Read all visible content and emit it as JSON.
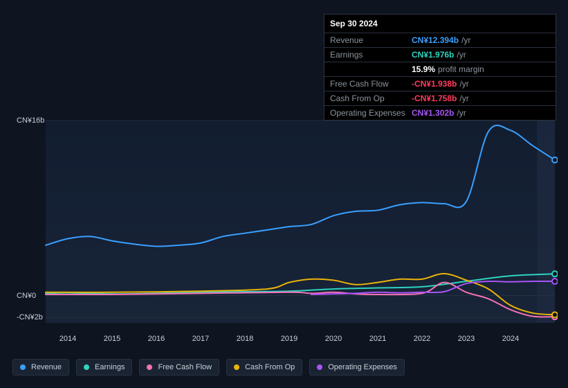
{
  "title_date": "Sep 30 2024",
  "tooltip": {
    "rows": [
      {
        "label": "Revenue",
        "value": "CN¥12.394b",
        "suffix": "/yr",
        "color": "#3aa0ff"
      },
      {
        "label": "Earnings",
        "value": "CN¥1.976b",
        "suffix": "/yr",
        "color": "#2dd4bf"
      },
      {
        "label": "",
        "value": "15.9%",
        "suffix": "profit margin",
        "color": "#ffffff"
      },
      {
        "label": "Free Cash Flow",
        "value": "-CN¥1.938b",
        "suffix": "/yr",
        "color": "#ff3b5c"
      },
      {
        "label": "Cash From Op",
        "value": "-CN¥1.758b",
        "suffix": "/yr",
        "color": "#ff3b5c"
      },
      {
        "label": "Operating Expenses",
        "value": "CN¥1.302b",
        "suffix": "/yr",
        "color": "#a855f7"
      }
    ]
  },
  "chart": {
    "type": "line",
    "background": "#0e1521",
    "plot_gradient_top": "#121d30",
    "plot_gradient_bottom": "#182438",
    "grid_color": "#26303e",
    "xlim": [
      2013.5,
      2025
    ],
    "ylim": [
      -2.5,
      16
    ],
    "y_ticks": [
      {
        "v": 16,
        "label": "CN¥16b"
      },
      {
        "v": 0,
        "label": "CN¥0"
      },
      {
        "v": -2,
        "label": "-CN¥2b"
      }
    ],
    "x_ticks": [
      2014,
      2015,
      2016,
      2017,
      2018,
      2019,
      2020,
      2021,
      2022,
      2023,
      2024
    ],
    "line_width": 2,
    "series": [
      {
        "name": "Revenue",
        "color": "#3aa0ff",
        "x": [
          2013.5,
          2014,
          2014.5,
          2015,
          2015.5,
          2016,
          2016.5,
          2017,
          2017.5,
          2018,
          2018.5,
          2019,
          2019.5,
          2020,
          2020.5,
          2021,
          2021.5,
          2022,
          2022.5,
          2023,
          2023.5,
          2024,
          2024.5,
          2025
        ],
        "y": [
          4.6,
          5.2,
          5.4,
          5.0,
          4.7,
          4.5,
          4.6,
          4.8,
          5.4,
          5.7,
          6.0,
          6.3,
          6.5,
          7.3,
          7.7,
          7.8,
          8.3,
          8.5,
          8.4,
          8.6,
          15.0,
          15.1,
          13.7,
          12.4
        ]
      },
      {
        "name": "Earnings",
        "color": "#2dd4bf",
        "x": [
          2013.5,
          2014,
          2015,
          2016,
          2017,
          2018,
          2019,
          2020,
          2021,
          2022,
          2023,
          2024,
          2025
        ],
        "y": [
          0.2,
          0.25,
          0.15,
          0.2,
          0.3,
          0.35,
          0.4,
          0.6,
          0.7,
          0.8,
          1.3,
          1.8,
          1.98
        ]
      },
      {
        "name": "Free Cash Flow",
        "color": "#f472b6",
        "x": [
          2013.5,
          2015,
          2017,
          2019,
          2019.5,
          2020,
          2020.5,
          2021,
          2022,
          2022.5,
          2023,
          2023.5,
          2024,
          2024.5,
          2025
        ],
        "y": [
          0.1,
          0.1,
          0.2,
          0.3,
          0.2,
          0.3,
          0.15,
          0.1,
          0.2,
          1.2,
          0.3,
          -0.3,
          -1.3,
          -1.9,
          -1.94
        ]
      },
      {
        "name": "Cash From Op",
        "color": "#eab308",
        "x": [
          2013.5,
          2015,
          2017,
          2018.5,
          2019,
          2019.5,
          2020,
          2020.5,
          2021,
          2021.5,
          2022,
          2022.5,
          2023,
          2023.5,
          2024,
          2024.5,
          2025
        ],
        "y": [
          0.3,
          0.3,
          0.4,
          0.6,
          1.2,
          1.5,
          1.4,
          1.0,
          1.2,
          1.5,
          1.5,
          2.0,
          1.4,
          0.6,
          -0.9,
          -1.6,
          -1.76
        ]
      },
      {
        "name": "Operating Expenses",
        "color": "#a855f7",
        "x": [
          2019.5,
          2020,
          2020.5,
          2021,
          2021.5,
          2022,
          2022.5,
          2023,
          2023.5,
          2024,
          2024.5,
          2025
        ],
        "y": [
          0.1,
          0.15,
          0.2,
          0.3,
          0.25,
          0.3,
          0.35,
          1.1,
          1.3,
          1.25,
          1.3,
          1.3
        ]
      }
    ]
  },
  "legend": [
    {
      "name": "Revenue",
      "color": "#3aa0ff"
    },
    {
      "name": "Earnings",
      "color": "#2dd4bf"
    },
    {
      "name": "Free Cash Flow",
      "color": "#f472b6"
    },
    {
      "name": "Cash From Op",
      "color": "#eab308"
    },
    {
      "name": "Operating Expenses",
      "color": "#a855f7"
    }
  ]
}
